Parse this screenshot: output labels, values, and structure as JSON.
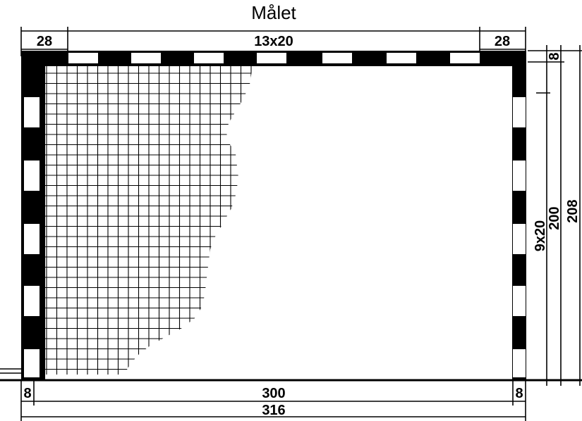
{
  "title": "Målet",
  "dimensions": {
    "top_left": "28",
    "top_middle": "13x20",
    "top_right": "28",
    "right_small": "8",
    "right_inner": "9x20",
    "right_mid": "200",
    "right_outer": "208",
    "bottom_left": "8",
    "bottom_middle": "300",
    "bottom_right": "8",
    "bottom_total": "316"
  },
  "colors": {
    "ink": "#000000",
    "paper": "#ffffff"
  }
}
